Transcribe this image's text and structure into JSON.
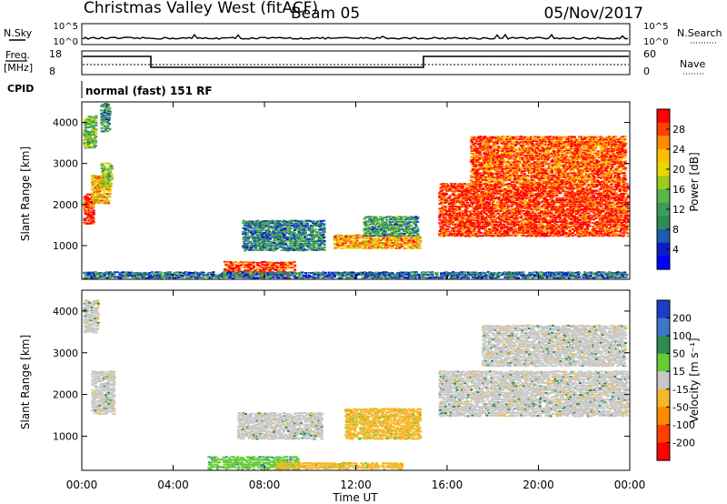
{
  "header": {
    "title": "Christmas Valley West (fitACF)",
    "beam": "Beam 05",
    "date": "05/Nov/2017"
  },
  "labels": {
    "nsky": "N.Sky",
    "nsearch": "N.Search",
    "freq_line1": "Freq.",
    "freq_line2": "[MHz]",
    "nave": "Nave",
    "cpid": "CPID",
    "cpid_value": "normal (fast) 151 RF"
  },
  "noise_axis": {
    "left": [
      "10^5",
      "10^0"
    ],
    "right": [
      "10^5",
      "10^0"
    ]
  },
  "freq_axis": {
    "left": [
      "18",
      "8"
    ],
    "right": [
      "60",
      "0"
    ]
  },
  "colors": {
    "frame": "#000000",
    "background": "#ffffff",
    "ground_scatter": "#c0c0c0"
  },
  "chart_data": [
    {
      "type": "heatmap",
      "name": "power",
      "ylabel": "Slant Range [km]",
      "yticks": [
        1000,
        2000,
        3000,
        4000
      ],
      "ylim": [
        180,
        4500
      ],
      "xlim": [
        0,
        24
      ],
      "colorbar_label": "Power [dB]",
      "colorbar_ticks": [
        "28",
        "24",
        "20",
        "16",
        "12",
        "8",
        "4"
      ],
      "colorbar_colors": [
        "#ff0000",
        "#ff4000",
        "#ff8c00",
        "#ffbf00",
        "#e8d800",
        "#9ccc1c",
        "#58b848",
        "#3c9c5c",
        "#2e8c52",
        "#1e5cb0",
        "#0a1ec8",
        "#0000ff"
      ],
      "regions": [
        {
          "t0": 0.0,
          "t1": 0.5,
          "r0": 1550,
          "r1": 2300,
          "level": 0.95
        },
        {
          "t0": 0.4,
          "t1": 1.2,
          "r0": 2050,
          "r1": 2750,
          "level": 0.7
        },
        {
          "t0": 0.8,
          "t1": 1.3,
          "r0": 2450,
          "r1": 3050,
          "level": 0.5
        },
        {
          "t0": 0.0,
          "t1": 0.6,
          "r0": 3400,
          "r1": 4200,
          "level": 0.45
        },
        {
          "t0": 0.8,
          "t1": 1.2,
          "r0": 3800,
          "r1": 4500,
          "level": 0.35
        },
        {
          "t0": 6.2,
          "t1": 9.3,
          "r0": 300,
          "r1": 650,
          "level": 0.9
        },
        {
          "t0": 7.0,
          "t1": 10.6,
          "r0": 900,
          "r1": 1650,
          "level": 0.3
        },
        {
          "t0": 11.0,
          "t1": 14.8,
          "r0": 950,
          "r1": 1300,
          "level": 0.75
        },
        {
          "t0": 12.3,
          "t1": 14.7,
          "r0": 1250,
          "r1": 1750,
          "level": 0.35
        },
        {
          "t0": 15.6,
          "t1": 24.0,
          "r0": 1250,
          "r1": 2550,
          "level": 0.92
        },
        {
          "t0": 17.0,
          "t1": 23.8,
          "r0": 2550,
          "r1": 3700,
          "level": 0.85
        },
        {
          "t0": 0.0,
          "t1": 24.0,
          "r0": 180,
          "r1": 400,
          "level": 0.25
        }
      ]
    },
    {
      "type": "heatmap",
      "name": "velocity",
      "ylabel": "Slant Range [km]",
      "yticks": [
        1000,
        2000,
        3000,
        4000
      ],
      "ylim": [
        180,
        4500
      ],
      "xlim": [
        0,
        24
      ],
      "xlabel": "Time UT",
      "xticks": [
        "00:00",
        "04:00",
        "08:00",
        "12:00",
        "16:00",
        "20:00",
        "00:00"
      ],
      "colorbar_label": "Velocity [m s⁻¹]",
      "colorbar_ticks": [
        "200",
        "100",
        "50",
        "15",
        "-15",
        "-50",
        "-100",
        "-200"
      ],
      "colorbar_colors": [
        "#1e3cc8",
        "#3c78c8",
        "#2e8c52",
        "#66cc33",
        "#c8c8c8",
        "#f5b82a",
        "#ff8c00",
        "#ff4000",
        "#ff0000"
      ],
      "regions": [
        {
          "t0": 0.4,
          "t1": 1.4,
          "r0": 1550,
          "r1": 2600,
          "level": "ground"
        },
        {
          "t0": 0.0,
          "t1": 0.7,
          "r0": 3500,
          "r1": 4300,
          "level": "ground"
        },
        {
          "t0": 6.8,
          "t1": 10.5,
          "r0": 950,
          "r1": 1600,
          "level": "ground"
        },
        {
          "t0": 11.5,
          "t1": 14.8,
          "r0": 950,
          "r1": 1700,
          "level": "neg50"
        },
        {
          "t0": 15.6,
          "t1": 24.0,
          "r0": 1500,
          "r1": 2600,
          "level": "ground"
        },
        {
          "t0": 17.5,
          "t1": 23.8,
          "r0": 2700,
          "r1": 3700,
          "level": "ground"
        },
        {
          "t0": 5.5,
          "t1": 9.5,
          "r0": 200,
          "r1": 550,
          "level": "pos50"
        },
        {
          "t0": 8.5,
          "t1": 14.0,
          "r0": 200,
          "r1": 400,
          "level": "neg50"
        }
      ]
    }
  ]
}
